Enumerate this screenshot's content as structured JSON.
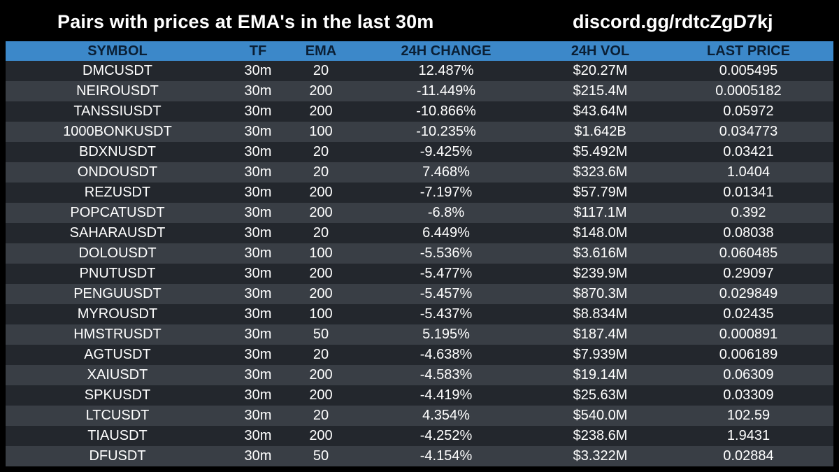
{
  "header": {
    "title": "Pairs with prices at EMA's in the last 30m",
    "discord": "discord.gg/rdtcZgD7kj"
  },
  "table": {
    "columns": [
      "SYMBOL",
      "TF",
      "EMA",
      "24H CHANGE",
      "24H VOL",
      "LAST PRICE"
    ],
    "rows": [
      [
        "DMCUSDT",
        "30m",
        "20",
        "12.487%",
        "$20.27M",
        "0.005495"
      ],
      [
        "NEIROUSDT",
        "30m",
        "200",
        "-11.449%",
        "$215.4M",
        "0.0005182"
      ],
      [
        "TANSSIUSDT",
        "30m",
        "200",
        "-10.866%",
        "$43.64M",
        "0.05972"
      ],
      [
        "1000BONKUSDT",
        "30m",
        "100",
        "-10.235%",
        "$1.642B",
        "0.034773"
      ],
      [
        "BDXNUSDT",
        "30m",
        "20",
        "-9.425%",
        "$5.492M",
        "0.03421"
      ],
      [
        "ONDOUSDT",
        "30m",
        "20",
        "7.468%",
        "$323.6M",
        "1.0404"
      ],
      [
        "REZUSDT",
        "30m",
        "200",
        "-7.197%",
        "$57.79M",
        "0.01341"
      ],
      [
        "POPCATUSDT",
        "30m",
        "200",
        "-6.8%",
        "$117.1M",
        "0.392"
      ],
      [
        "SAHARAUSDT",
        "30m",
        "20",
        "6.449%",
        "$148.0M",
        "0.08038"
      ],
      [
        "DOLOUSDT",
        "30m",
        "100",
        "-5.536%",
        "$3.616M",
        "0.060485"
      ],
      [
        "PNUTUSDT",
        "30m",
        "200",
        "-5.477%",
        "$239.9M",
        "0.29097"
      ],
      [
        "PENGUUSDT",
        "30m",
        "200",
        "-5.457%",
        "$870.3M",
        "0.029849"
      ],
      [
        "MYROUSDT",
        "30m",
        "100",
        "-5.437%",
        "$8.834M",
        "0.02435"
      ],
      [
        "HMSTRUSDT",
        "30m",
        "50",
        "5.195%",
        "$187.4M",
        "0.000891"
      ],
      [
        "AGTUSDT",
        "30m",
        "20",
        "-4.638%",
        "$7.939M",
        "0.006189"
      ],
      [
        "XAIUSDT",
        "30m",
        "200",
        "-4.583%",
        "$19.14M",
        "0.06309"
      ],
      [
        "SPKUSDT",
        "30m",
        "200",
        "-4.419%",
        "$25.63M",
        "0.03309"
      ],
      [
        "LTCUSDT",
        "30m",
        "20",
        "4.354%",
        "$540.0M",
        "102.59"
      ],
      [
        "TIAUSDT",
        "30m",
        "200",
        "-4.252%",
        "$238.6M",
        "1.9431"
      ],
      [
        "DFUSDT",
        "30m",
        "50",
        "-4.154%",
        "$3.322M",
        "0.02884"
      ]
    ]
  },
  "colors": {
    "background": "#000000",
    "header_bg": "#3c88c9",
    "header_text": "#0a1f35",
    "row_dark": "#23272d",
    "row_light": "#393e45",
    "text": "#ffffff"
  }
}
